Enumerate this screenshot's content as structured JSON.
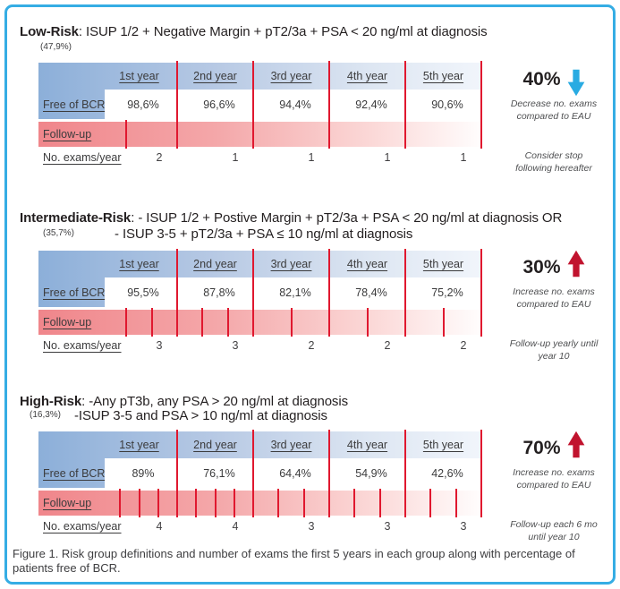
{
  "figure": {
    "caption": "Figure 1. Risk group definitions and number of exams the first 5 years in each group along with percentage of patients free of BCR.",
    "border_color": "#35ADE4",
    "line_red": "#E0182F",
    "arrow_blue": "#29ABE2",
    "arrow_red": "#C1132E",
    "header_blue": "#8CAFD9",
    "followup_pink": "#F0868B"
  },
  "table": {
    "year_columns": [
      "1st year",
      "2nd year",
      "3rd year",
      "4th year",
      "5th year"
    ],
    "row_free_of_bcr": "Free of BCR",
    "row_followup": "Follow-up",
    "row_exams": "No. exams/year"
  },
  "panels": [
    {
      "title_bold": "Low-Risk",
      "title_rest": ": ISUP 1/2 + Negative Margin + pT2/3a + PSA < 20 ng/ml at diagnosis",
      "title_line2": "",
      "prevalence": "(47,9%)",
      "free_of_bcr": [
        "98,6%",
        "96,6%",
        "94,4%",
        "92,4%",
        "90,6%"
      ],
      "exams_per_year": [
        "2",
        "1",
        "1",
        "1",
        "1"
      ],
      "exam_tick_fractions": [
        [
          0.33,
          1
        ],
        [
          1
        ],
        [
          1
        ],
        [
          1
        ],
        [
          1
        ]
      ],
      "change_pct": "40%",
      "change_direction": "down",
      "change_note_line1": "Decrease no. exams",
      "change_note_line2": "compared to EAU",
      "footnote_line1": "Consider stop",
      "footnote_line2": "following hereafter"
    },
    {
      "title_bold": "Intermediate-Risk",
      "title_rest": ": - ISUP 1/2 + Postive Margin + pT2/3a + PSA < 20 ng/ml at diagnosis OR",
      "title_line2": "- ISUP 3-5 + pT2/3a + PSA ≤ 10 ng/ml at diagnosis",
      "prevalence": "(35,7%)",
      "free_of_bcr": [
        "95,5%",
        "87,8%",
        "82,1%",
        "78,4%",
        "75,2%"
      ],
      "exams_per_year": [
        "3",
        "3",
        "2",
        "2",
        "2"
      ],
      "exam_tick_fractions": [
        [
          0.33,
          0.67,
          1
        ],
        [
          0.33,
          0.67,
          1
        ],
        [
          0.5,
          1
        ],
        [
          0.5,
          1
        ],
        [
          0.5,
          1
        ]
      ],
      "change_pct": "30%",
      "change_direction": "up",
      "change_note_line1": "Increase no. exams",
      "change_note_line2": "compared to EAU",
      "footnote_line1": "Follow-up yearly until",
      "footnote_line2": "year 10"
    },
    {
      "title_bold": "High-Risk",
      "title_rest": ": -Any pT3b, any PSA > 20 ng/ml at diagnosis",
      "title_line2": "-ISUP 3-5 and PSA > 10 ng/ml at diagnosis",
      "prevalence": "(16,3%)",
      "free_of_bcr": [
        "89%",
        "76,1%",
        "64,4%",
        "54,9%",
        "42,6%"
      ],
      "exams_per_year": [
        "4",
        "4",
        "3",
        "3",
        "3"
      ],
      "exam_tick_fractions": [
        [
          0.25,
          0.5,
          0.75,
          1
        ],
        [
          0.25,
          0.5,
          0.75,
          1
        ],
        [
          0.33,
          0.67,
          1
        ],
        [
          0.33,
          0.67,
          1
        ],
        [
          0.33,
          0.67,
          1
        ]
      ],
      "change_pct": "70%",
      "change_direction": "up",
      "change_note_line1": "Increase no. exams",
      "change_note_line2": "compared to EAU",
      "footnote_line1": "Follow-up each 6 mo",
      "footnote_line2": "until year 10"
    }
  ],
  "chart_data": [
    {
      "type": "table",
      "title": "Low-Risk (47,9%): ISUP 1/2 + Negative Margin + pT2/3a + PSA < 20 ng/ml at diagnosis",
      "columns": [
        "1st year",
        "2nd year",
        "3rd year",
        "4th year",
        "5th year"
      ],
      "rows": [
        {
          "label": "Free of BCR",
          "values": [
            "98,6%",
            "96,6%",
            "94,4%",
            "92,4%",
            "90,6%"
          ]
        },
        {
          "label": "No. exams/year",
          "values": [
            2,
            1,
            1,
            1,
            1
          ]
        }
      ],
      "annotation": "40% decrease no. exams compared to EAU; Consider stop following hereafter"
    },
    {
      "type": "table",
      "title": "Intermediate-Risk (35,7%): - ISUP 1/2 + Postive Margin + pT2/3a + PSA < 20 ng/ml at diagnosis OR - ISUP 3-5 + pT2/3a + PSA ≤ 10 ng/ml at diagnosis",
      "columns": [
        "1st year",
        "2nd year",
        "3rd year",
        "4th year",
        "5th year"
      ],
      "rows": [
        {
          "label": "Free of BCR",
          "values": [
            "95,5%",
            "87,8%",
            "82,1%",
            "78,4%",
            "75,2%"
          ]
        },
        {
          "label": "No. exams/year",
          "values": [
            3,
            3,
            2,
            2,
            2
          ]
        }
      ],
      "annotation": "30% increase no. exams compared to EAU; Follow-up yearly until year 10"
    },
    {
      "type": "table",
      "title": "High-Risk (16,3%): -Any pT3b, any PSA > 20 ng/ml at diagnosis -ISUP 3-5 and PSA > 10 ng/ml at diagnosis",
      "columns": [
        "1st year",
        "2nd year",
        "3rd year",
        "4th year",
        "5th year"
      ],
      "rows": [
        {
          "label": "Free of BCR",
          "values": [
            "89%",
            "76,1%",
            "64,4%",
            "54,9%",
            "42,6%"
          ]
        },
        {
          "label": "No. exams/year",
          "values": [
            4,
            4,
            3,
            3,
            3
          ]
        }
      ],
      "annotation": "70% increase no. exams compared to EAU; Follow-up each 6 mo until year 10"
    }
  ]
}
